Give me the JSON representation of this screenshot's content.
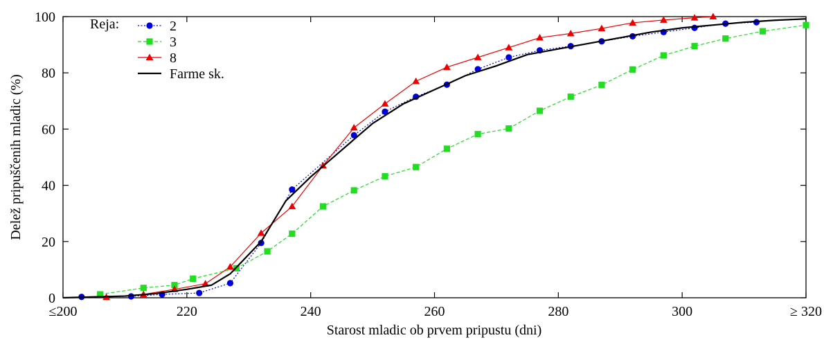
{
  "chart_data": {
    "type": "line",
    "xlabel": "Starost mladic ob prvem pripustu (dni)",
    "ylabel": "Delež pripuščenih mladic (%)",
    "xlim": [
      200,
      320
    ],
    "ylim": [
      0,
      100
    ],
    "x_ticks": [
      200,
      220,
      240,
      260,
      280,
      300,
      320
    ],
    "x_tick_labels": [
      "≤200",
      "220",
      "240",
      "260",
      "280",
      "300",
      "≥ 320"
    ],
    "y_ticks": [
      0,
      20,
      40,
      60,
      80,
      100
    ],
    "y_tick_labels": [
      "0",
      "20",
      "40",
      "60",
      "80",
      "100"
    ],
    "grid": false,
    "legend": {
      "title": "Reja:",
      "placement": "top-left"
    },
    "series": [
      {
        "name": "2",
        "color": "#0000dd",
        "marker": "circle",
        "line_style": "dotted",
        "x": [
          203,
          211,
          216,
          222,
          227,
          232,
          237,
          247,
          252,
          257,
          262,
          267,
          272,
          277,
          282,
          287,
          292,
          297,
          302,
          307,
          312
        ],
        "y": [
          0.3,
          0.5,
          1.2,
          1.7,
          5.2,
          19.5,
          38.5,
          57.8,
          66.2,
          71.5,
          75.8,
          81.3,
          85.5,
          88.0,
          89.5,
          91.2,
          93.0,
          94.5,
          96.0,
          97.5,
          98.0
        ]
      },
      {
        "name": "3",
        "color": "#22dd22",
        "marker": "square",
        "line_style": "dashed",
        "x": [
          206,
          213,
          218,
          221,
          228,
          233,
          237,
          242,
          247,
          252,
          257,
          262,
          267,
          272,
          277,
          282,
          287,
          292,
          297,
          302,
          307,
          313,
          320
        ],
        "y": [
          1.2,
          3.5,
          4.5,
          6.8,
          10.5,
          16.5,
          22.8,
          32.5,
          38.2,
          43.2,
          46.5,
          53.0,
          58.2,
          60.2,
          66.5,
          71.5,
          75.7,
          81.2,
          86.2,
          89.5,
          92.2,
          94.8,
          97.0
        ]
      },
      {
        "name": "8",
        "color": "#ee0000",
        "marker": "triangle",
        "line_style": "solid",
        "x": [
          207,
          213,
          218,
          223,
          227,
          232,
          237,
          242,
          247,
          252,
          257,
          262,
          267,
          272,
          277,
          282,
          287,
          292,
          297,
          302,
          305
        ],
        "y": [
          0.2,
          1.2,
          3.0,
          5.0,
          11.0,
          23.0,
          32.5,
          47.0,
          60.5,
          69.0,
          77.0,
          82.0,
          85.5,
          89.0,
          92.5,
          94.0,
          95.8,
          97.8,
          98.8,
          99.6,
          100.0
        ]
      },
      {
        "name": "Farme sk.",
        "color": "#000000",
        "marker": "none",
        "line_style": "solid",
        "x": [
          200,
          205,
          210,
          215,
          220,
          224,
          227,
          232,
          236,
          240,
          245,
          250,
          255,
          260,
          265,
          270,
          275,
          280,
          285,
          290,
          295,
          300,
          305,
          310,
          315,
          320
        ],
        "y": [
          0,
          0.3,
          0.6,
          1.5,
          3.0,
          4.5,
          8.5,
          20.0,
          34.5,
          43.0,
          52.5,
          62.0,
          69.0,
          74.0,
          79.0,
          82.5,
          86.5,
          88.5,
          90.5,
          92.5,
          94.5,
          96.0,
          97.0,
          98.0,
          98.7,
          99.2
        ]
      }
    ]
  }
}
